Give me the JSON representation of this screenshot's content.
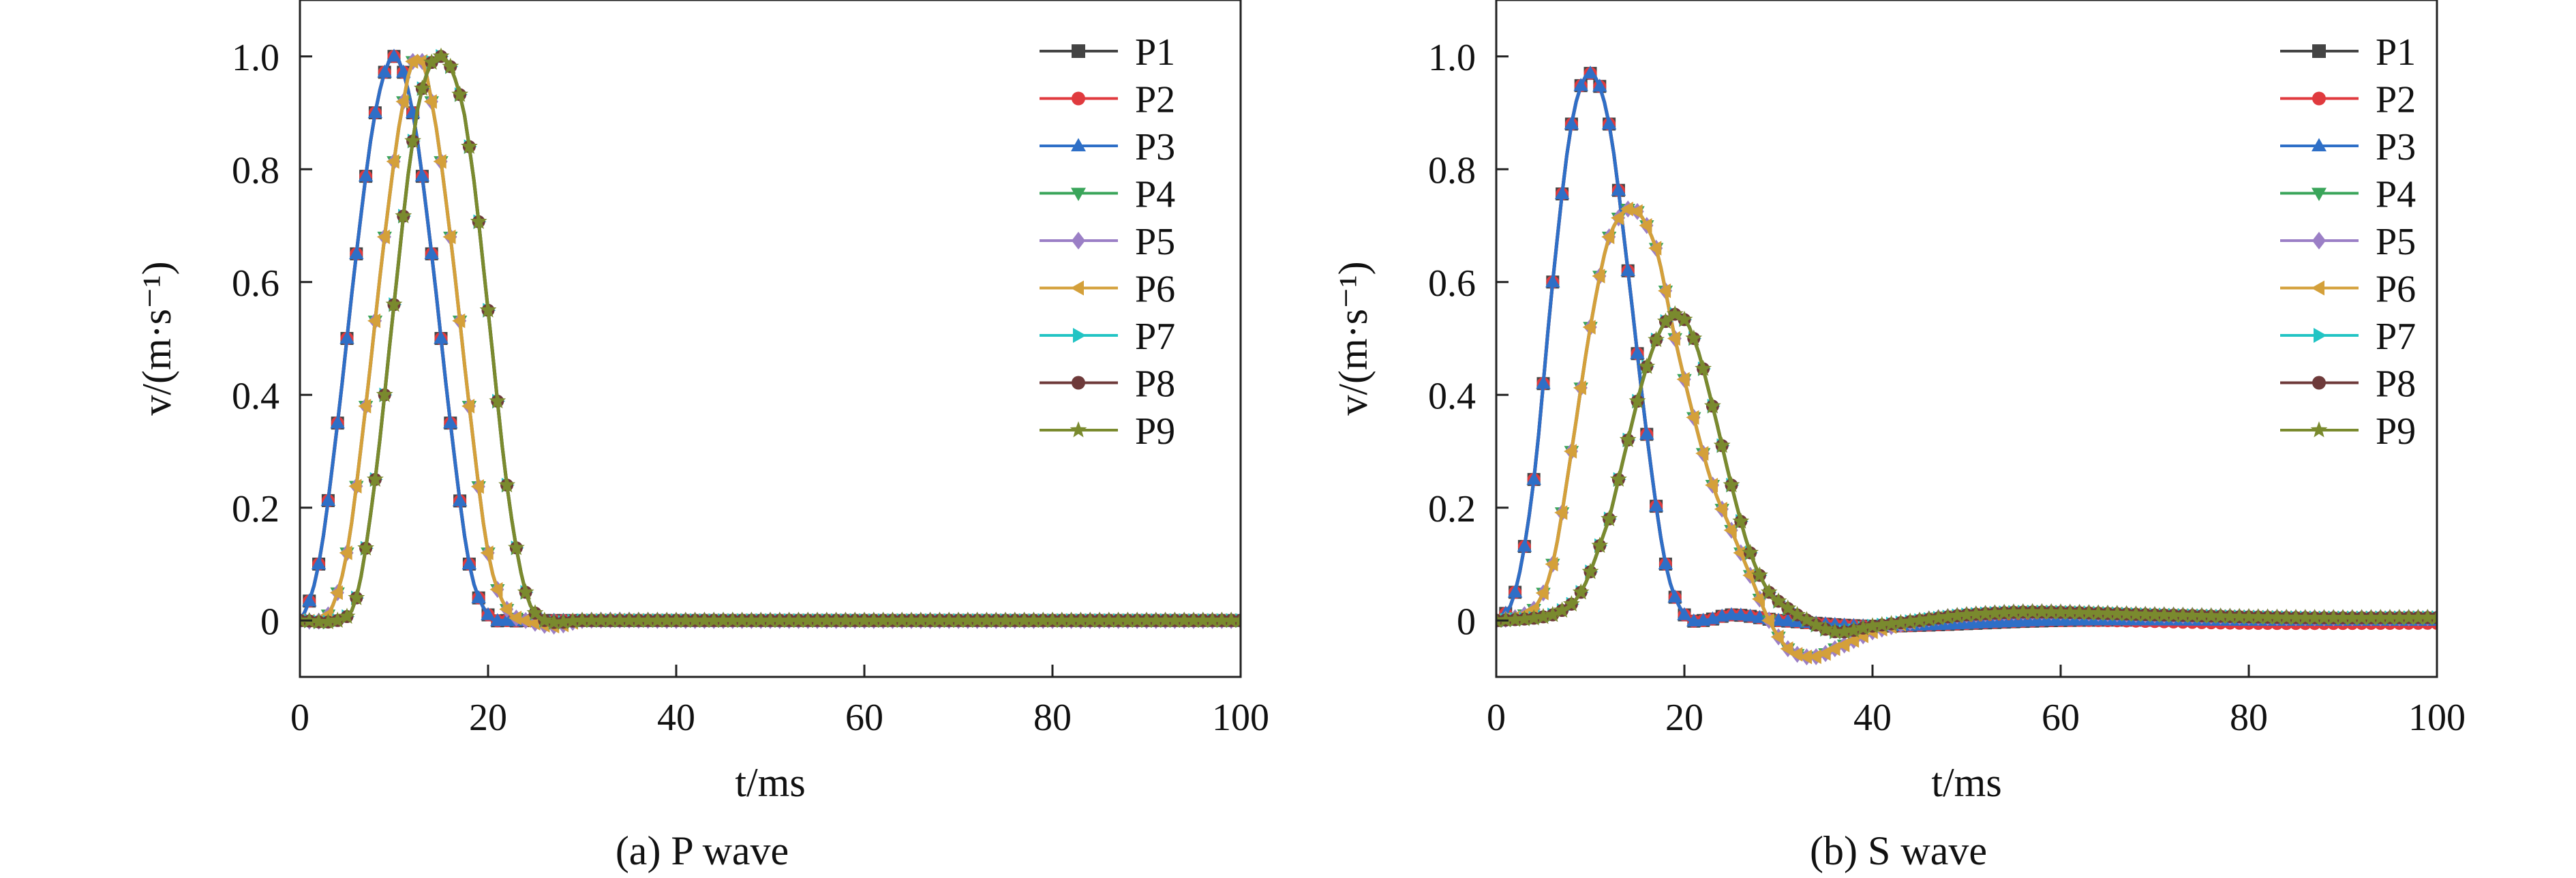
{
  "series_styles": [
    {
      "name": "P1",
      "color": "#444444",
      "marker": "square"
    },
    {
      "name": "P2",
      "color": "#e03a3e",
      "marker": "circle"
    },
    {
      "name": "P3",
      "color": "#2e6fc7",
      "marker": "triangle-up"
    },
    {
      "name": "P4",
      "color": "#3aa55a",
      "marker": "triangle-down"
    },
    {
      "name": "P5",
      "color": "#9b7fc6",
      "marker": "diamond"
    },
    {
      "name": "P6",
      "color": "#d4a03a",
      "marker": "triangle-left"
    },
    {
      "name": "P7",
      "color": "#22c4c4",
      "marker": "triangle-right"
    },
    {
      "name": "P8",
      "color": "#6e3a3a",
      "marker": "circle"
    },
    {
      "name": "P9",
      "color": "#7a8a2e",
      "marker": "star"
    }
  ],
  "chart_data": [
    {
      "type": "line",
      "caption": "(a) P wave",
      "xlabel": "t/ms",
      "ylabel": "v/(m·s⁻¹)",
      "xlim": [
        0,
        100
      ],
      "ylim": [
        -0.1,
        1.1
      ],
      "xticks": [
        "0",
        "20",
        "40",
        "60",
        "80",
        "100"
      ],
      "yticks": [
        "0",
        "0.2",
        "0.4",
        "0.6",
        "0.8",
        "1.0"
      ],
      "legend_position": "top-right",
      "series": [
        {
          "name": "P1",
          "x": [
            0,
            2,
            4,
            6,
            8,
            10,
            12,
            14,
            16,
            18,
            20,
            22,
            25,
            30,
            40,
            60,
            80,
            100
          ],
          "y": [
            0,
            0.1,
            0.35,
            0.65,
            0.9,
            1.0,
            0.9,
            0.65,
            0.35,
            0.1,
            0.01,
            0,
            0,
            0,
            0,
            0,
            0,
            0
          ]
        },
        {
          "name": "P2",
          "x": [
            0,
            2,
            4,
            6,
            8,
            10,
            12,
            14,
            16,
            18,
            20,
            22,
            25,
            30,
            40,
            60,
            80,
            100
          ],
          "y": [
            0,
            0.1,
            0.35,
            0.65,
            0.9,
            1.0,
            0.9,
            0.65,
            0.35,
            0.1,
            0.01,
            0,
            0,
            0,
            0,
            0,
            0,
            0
          ]
        },
        {
          "name": "P3",
          "x": [
            0,
            2,
            4,
            6,
            8,
            10,
            12,
            14,
            16,
            18,
            20,
            22,
            25,
            30,
            40,
            60,
            80,
            100
          ],
          "y": [
            0,
            0.1,
            0.35,
            0.65,
            0.9,
            1.0,
            0.9,
            0.65,
            0.35,
            0.1,
            0.01,
            0,
            0,
            0,
            0,
            0,
            0,
            0
          ]
        },
        {
          "name": "P4",
          "x": [
            0,
            3,
            5,
            7,
            9,
            11,
            12.5,
            14,
            16,
            18,
            20,
            22,
            24,
            27,
            30,
            40,
            60,
            80,
            100
          ],
          "y": [
            0,
            0.01,
            0.12,
            0.38,
            0.68,
            0.92,
            1.0,
            0.92,
            0.68,
            0.38,
            0.12,
            0.02,
            0,
            -0.01,
            0,
            0,
            0,
            0,
            0
          ]
        },
        {
          "name": "P5",
          "x": [
            0,
            3,
            5,
            7,
            9,
            11,
            12.5,
            14,
            16,
            18,
            20,
            22,
            24,
            27,
            30,
            40,
            60,
            80,
            100
          ],
          "y": [
            0,
            0.01,
            0.12,
            0.38,
            0.68,
            0.92,
            1.0,
            0.92,
            0.68,
            0.38,
            0.12,
            0.02,
            0,
            -0.01,
            0,
            0,
            0,
            0,
            0
          ]
        },
        {
          "name": "P6",
          "x": [
            0,
            3,
            5,
            7,
            9,
            11,
            12.5,
            14,
            16,
            18,
            20,
            22,
            24,
            27,
            30,
            40,
            60,
            80,
            100
          ],
          "y": [
            0,
            0.01,
            0.12,
            0.38,
            0.68,
            0.92,
            1.0,
            0.92,
            0.68,
            0.38,
            0.12,
            0.02,
            0,
            -0.01,
            0,
            0,
            0,
            0,
            0
          ]
        },
        {
          "name": "P7",
          "x": [
            0,
            4,
            6,
            8,
            10,
            12,
            13.5,
            15,
            16.5,
            18,
            20,
            22,
            24,
            26,
            30,
            40,
            60,
            80,
            100
          ],
          "y": [
            0,
            0,
            0.04,
            0.25,
            0.56,
            0.85,
            0.97,
            1.0,
            0.96,
            0.84,
            0.55,
            0.24,
            0.05,
            0,
            0,
            0,
            0,
            0,
            0
          ]
        },
        {
          "name": "P8",
          "x": [
            0,
            4,
            6,
            8,
            10,
            12,
            13.5,
            15,
            16.5,
            18,
            20,
            22,
            24,
            26,
            30,
            40,
            60,
            80,
            100
          ],
          "y": [
            0,
            0,
            0.04,
            0.25,
            0.56,
            0.85,
            0.97,
            1.0,
            0.96,
            0.84,
            0.55,
            0.24,
            0.05,
            0,
            0,
            0,
            0,
            0,
            0
          ]
        },
        {
          "name": "P9",
          "x": [
            0,
            4,
            6,
            8,
            10,
            12,
            13.5,
            15,
            16.5,
            18,
            20,
            22,
            24,
            26,
            30,
            40,
            60,
            80,
            100
          ],
          "y": [
            0,
            0,
            0.04,
            0.25,
            0.56,
            0.85,
            0.97,
            1.0,
            0.96,
            0.84,
            0.55,
            0.24,
            0.05,
            0,
            0,
            0,
            0,
            0,
            0
          ]
        }
      ]
    },
    {
      "type": "line",
      "caption": "(b) S wave",
      "xlabel": "t/ms",
      "ylabel": "v/(m·s⁻¹)",
      "xlim": [
        0,
        100
      ],
      "ylim": [
        -0.1,
        1.1
      ],
      "xticks": [
        "0",
        "20",
        "40",
        "60",
        "80",
        "100"
      ],
      "yticks": [
        "0",
        "0.2",
        "0.4",
        "0.6",
        "0.8",
        "1.0"
      ],
      "legend_position": "top-right",
      "series": [
        {
          "name": "P1",
          "x": [
            0,
            2,
            4,
            6,
            8,
            10,
            12,
            14,
            16,
            18,
            20,
            22,
            25,
            30,
            40,
            60,
            80,
            100
          ],
          "y": [
            0,
            0.05,
            0.25,
            0.6,
            0.88,
            0.97,
            0.88,
            0.62,
            0.33,
            0.1,
            0.01,
            0,
            0.01,
            0,
            -0.01,
            0,
            0,
            0
          ]
        },
        {
          "name": "P2",
          "x": [
            0,
            2,
            4,
            6,
            8,
            10,
            12,
            14,
            16,
            18,
            20,
            22,
            25,
            30,
            40,
            60,
            80,
            100
          ],
          "y": [
            0,
            0.05,
            0.25,
            0.6,
            0.88,
            0.97,
            0.88,
            0.62,
            0.33,
            0.1,
            0.01,
            0,
            0.01,
            0,
            -0.01,
            0,
            -0.005,
            -0.005
          ]
        },
        {
          "name": "P3",
          "x": [
            0,
            2,
            4,
            6,
            8,
            10,
            12,
            14,
            16,
            18,
            20,
            22,
            25,
            30,
            40,
            60,
            80,
            100
          ],
          "y": [
            0,
            0.05,
            0.25,
            0.6,
            0.88,
            0.97,
            0.88,
            0.62,
            0.33,
            0.1,
            0.01,
            0,
            0.01,
            0,
            -0.01,
            0,
            0,
            0
          ]
        },
        {
          "name": "P4",
          "x": [
            0,
            4,
            6,
            8,
            10,
            12,
            14.5,
            17,
            19,
            21,
            23,
            25,
            27,
            29,
            31,
            33.5,
            36,
            40,
            45,
            50,
            57,
            70,
            85,
            100
          ],
          "y": [
            0,
            0.02,
            0.1,
            0.3,
            0.52,
            0.68,
            0.73,
            0.66,
            0.5,
            0.36,
            0.24,
            0.16,
            0.08,
            0,
            -0.05,
            -0.065,
            -0.05,
            -0.02,
            0,
            0.01,
            0.015,
            0.01,
            0.005,
            0.005
          ]
        },
        {
          "name": "P5",
          "x": [
            0,
            4,
            6,
            8,
            10,
            12,
            14.5,
            17,
            19,
            21,
            23,
            25,
            27,
            29,
            31,
            33.5,
            36,
            40,
            45,
            50,
            57,
            70,
            85,
            100
          ],
          "y": [
            0,
            0.02,
            0.1,
            0.3,
            0.52,
            0.68,
            0.73,
            0.66,
            0.5,
            0.36,
            0.24,
            0.16,
            0.08,
            0,
            -0.05,
            -0.065,
            -0.05,
            -0.02,
            0,
            0.01,
            0.015,
            0.01,
            0.005,
            0.005
          ]
        },
        {
          "name": "P6",
          "x": [
            0,
            4,
            6,
            8,
            10,
            12,
            14.5,
            17,
            19,
            21,
            23,
            25,
            27,
            29,
            31,
            33.5,
            36,
            40,
            45,
            50,
            57,
            70,
            85,
            100
          ],
          "y": [
            0,
            0.02,
            0.1,
            0.3,
            0.52,
            0.68,
            0.73,
            0.66,
            0.5,
            0.36,
            0.24,
            0.16,
            0.08,
            0,
            -0.05,
            -0.065,
            -0.05,
            -0.02,
            0,
            0.01,
            0.015,
            0.01,
            0.005,
            0.005
          ]
        },
        {
          "name": "P7",
          "x": [
            0,
            6,
            9,
            12,
            14,
            16,
            18,
            19.5,
            21,
            23,
            25,
            27,
            29,
            32,
            36,
            40,
            45,
            50,
            57,
            70,
            85,
            100
          ],
          "y": [
            0,
            0.01,
            0.05,
            0.18,
            0.32,
            0.45,
            0.53,
            0.54,
            0.5,
            0.38,
            0.24,
            0.12,
            0.05,
            0.01,
            -0.02,
            -0.01,
            0,
            0.01,
            0.015,
            0.01,
            0.005,
            0.005
          ]
        },
        {
          "name": "P8",
          "x": [
            0,
            6,
            9,
            12,
            14,
            16,
            18,
            19.5,
            21,
            23,
            25,
            27,
            29,
            32,
            36,
            40,
            45,
            50,
            57,
            70,
            85,
            100
          ],
          "y": [
            0,
            0.01,
            0.05,
            0.18,
            0.32,
            0.45,
            0.53,
            0.54,
            0.5,
            0.38,
            0.24,
            0.12,
            0.05,
            0.01,
            -0.02,
            -0.01,
            0,
            0.01,
            0.015,
            0.01,
            0.005,
            0.005
          ]
        },
        {
          "name": "P9",
          "x": [
            0,
            6,
            9,
            12,
            14,
            16,
            18,
            19.5,
            21,
            23,
            25,
            27,
            29,
            32,
            36,
            40,
            45,
            50,
            57,
            70,
            85,
            100
          ],
          "y": [
            0,
            0.01,
            0.05,
            0.18,
            0.32,
            0.45,
            0.53,
            0.54,
            0.5,
            0.38,
            0.24,
            0.12,
            0.05,
            0.01,
            -0.02,
            -0.01,
            0,
            0.01,
            0.015,
            0.01,
            0.005,
            0.005
          ]
        }
      ]
    }
  ]
}
